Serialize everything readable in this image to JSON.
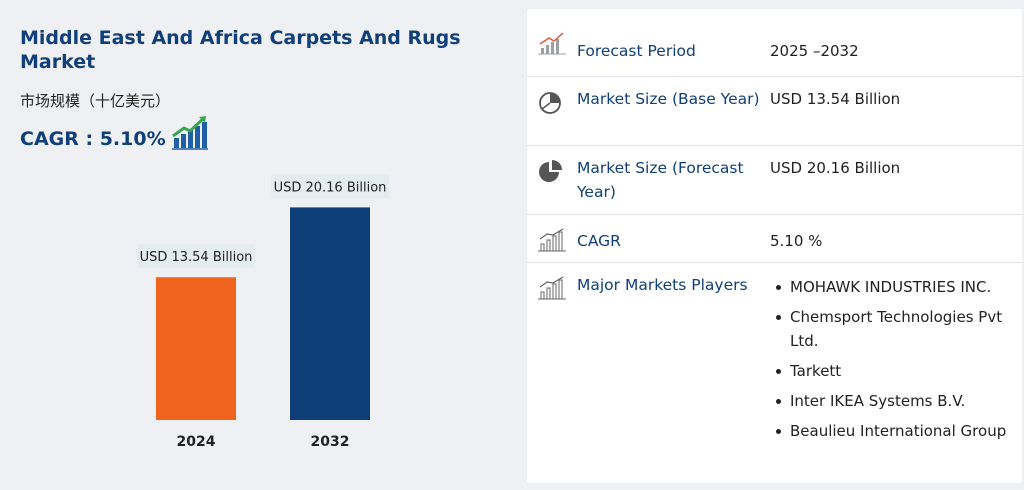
{
  "title": "Middle East And Africa Carpets And Rugs Market",
  "subtitle": "市场规模（十亿美元）",
  "cagr_text": "CAGR : 5.10%",
  "colors": {
    "brand": "#103f7a",
    "bar_2024": "#f0641e",
    "bar_2032": "#0f3f78",
    "icon_green": "#3aa655"
  },
  "chart_data": {
    "type": "bar",
    "categories": [
      "2024",
      "2032"
    ],
    "values": [
      13.54,
      20.16
    ],
    "data_labels": [
      "USD 13.54 Billion",
      "USD 20.16 Billion"
    ],
    "title": "",
    "xlabel": "",
    "ylabel": "",
    "ylim": [
      0,
      22
    ]
  },
  "table": {
    "forecast_period": {
      "label": "Forecast Period",
      "value": "2025 –2032",
      "icon": "chart-growth-icon"
    },
    "market_size_base": {
      "label": "Market Size (Base Year)",
      "value": "USD 13.54 Billion",
      "icon": "pie-chart-icon"
    },
    "market_size_forecast": {
      "label": "Market Size (Forecast Year)",
      "value": "USD 20.16 Billion",
      "icon": "pie-chart-filled-icon"
    },
    "cagr": {
      "label": "CAGR",
      "value": "5.10 %",
      "icon": "bar-growth-icon"
    },
    "players": {
      "label": "Major Markets Players",
      "icon": "bar-growth-icon",
      "items": [
        "MOHAWK INDUSTRIES INC.",
        "Chemsport Technologies Pvt Ltd.",
        "Tarkett",
        "Inter IKEA Systems B.V.",
        "Beaulieu International Group"
      ]
    }
  }
}
